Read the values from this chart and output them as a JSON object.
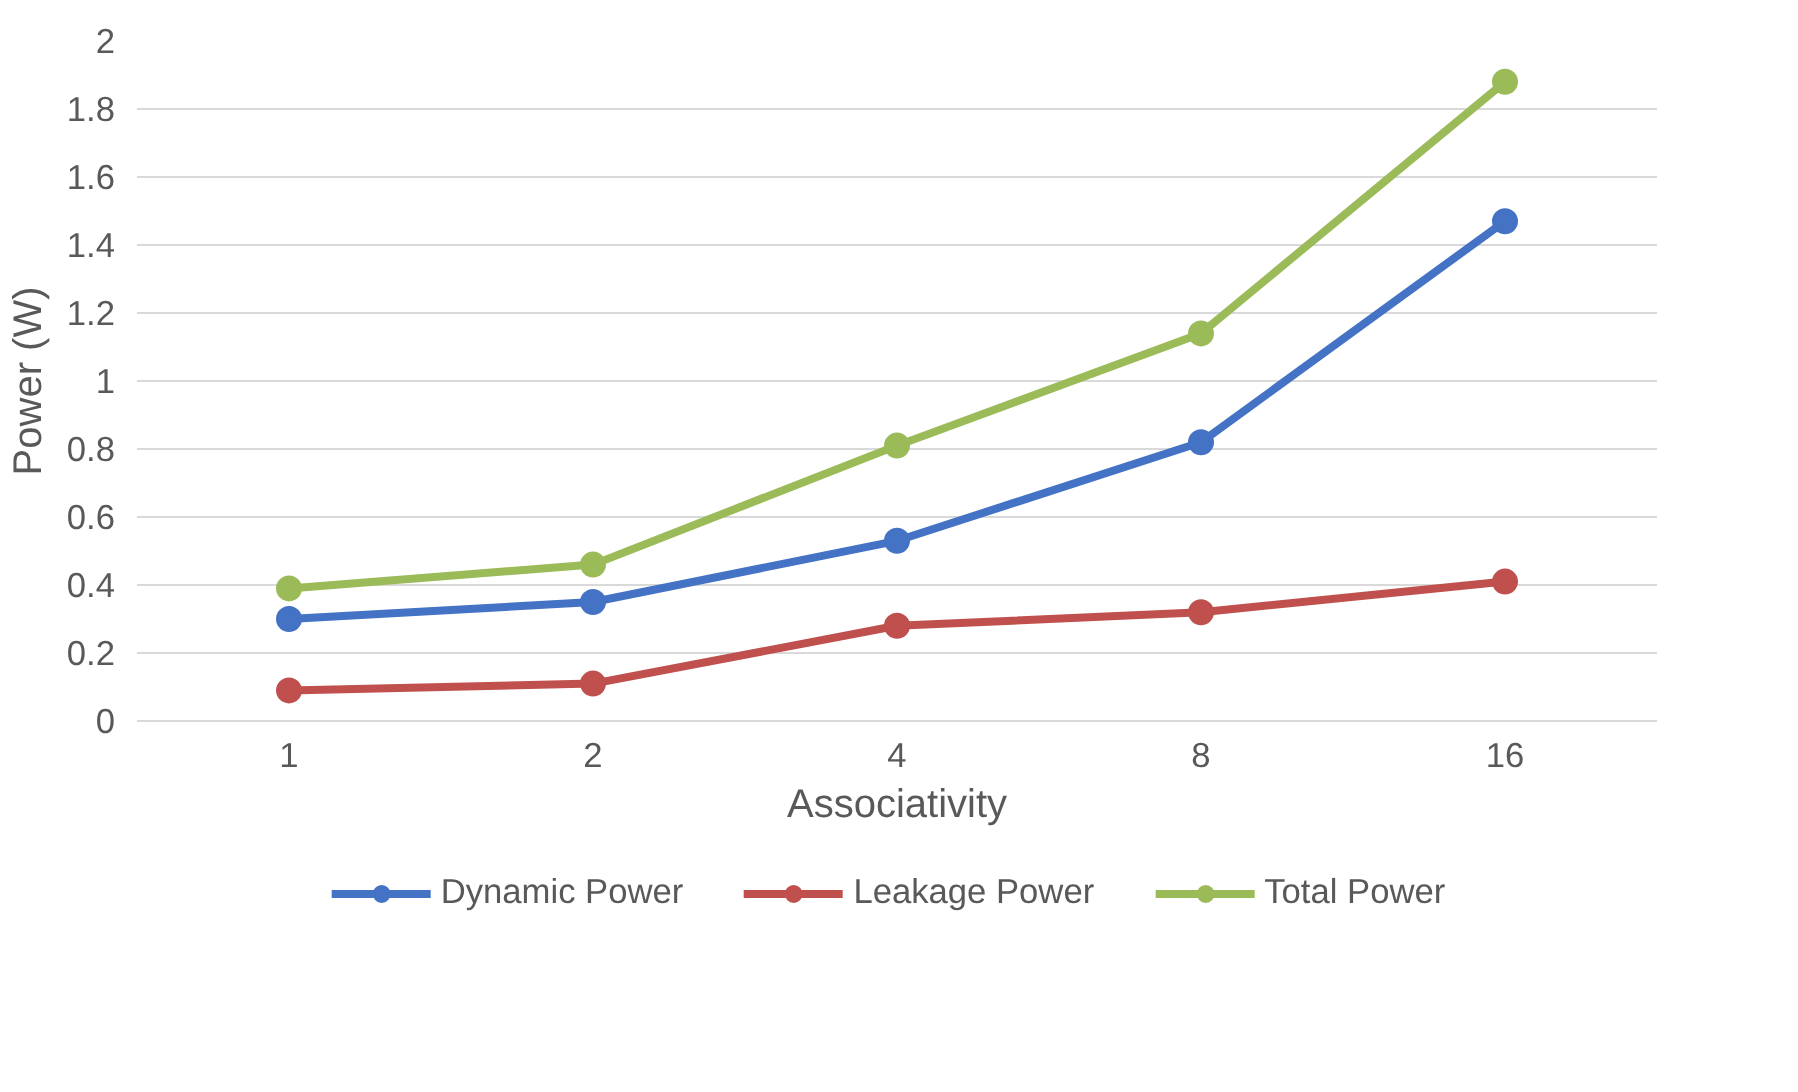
{
  "chart_data": {
    "type": "line",
    "xlabel": "Associativity",
    "ylabel": "Power (W)",
    "categories": [
      "1",
      "2",
      "4",
      "8",
      "16"
    ],
    "series": [
      {
        "name": "Dynamic Power",
        "color": "#4472c4",
        "values": [
          0.3,
          0.35,
          0.53,
          0.82,
          1.47
        ]
      },
      {
        "name": "Leakage Power",
        "color": "#c0504d",
        "values": [
          0.09,
          0.11,
          0.28,
          0.32,
          0.41
        ]
      },
      {
        "name": "Total Power",
        "color": "#9bbb59",
        "values": [
          0.39,
          0.46,
          0.81,
          1.14,
          1.88
        ]
      }
    ],
    "ylim": [
      0,
      2
    ],
    "yticks": [
      0,
      0.2,
      0.4,
      0.6,
      0.8,
      1,
      1.2,
      1.4,
      1.6,
      1.8,
      2
    ],
    "grid": "y",
    "legend": "bottom",
    "marker": "circle",
    "line_style": "solid"
  }
}
